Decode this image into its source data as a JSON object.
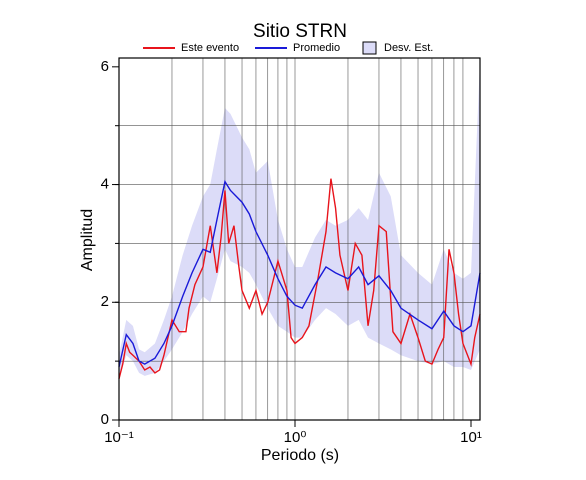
{
  "chart_data": {
    "type": "line",
    "title": "Sitio STRN",
    "x_label": "Periodo (s)",
    "y_label": "Amplitud",
    "xscale": "log",
    "xlim": [
      0.1,
      11.25
    ],
    "ylim": [
      0,
      6.15
    ],
    "xticks": [
      {
        "value": 0.1,
        "label": "10⁻¹"
      },
      {
        "value": 1,
        "label": "10⁰"
      },
      {
        "value": 10,
        "label": "10¹"
      }
    ],
    "yticks": [
      0,
      2,
      4,
      6
    ],
    "xgrid": [
      0.2,
      0.3,
      0.4,
      0.5,
      0.6,
      0.7,
      0.8,
      0.9,
      1,
      2,
      3,
      4,
      5,
      6,
      7,
      8,
      9
    ],
    "ygrid": [
      1,
      2,
      3,
      4,
      5
    ],
    "legend": "top",
    "band": {
      "name": "Desv. Est.",
      "color": "#dcdcf8",
      "x": [
        0.1,
        0.11,
        0.12,
        0.13,
        0.14,
        0.16,
        0.18,
        0.2,
        0.23,
        0.26,
        0.3,
        0.33,
        0.36,
        0.4,
        0.43,
        0.5,
        0.55,
        0.6,
        0.7,
        0.8,
        0.9,
        1.0,
        1.1,
        1.3,
        1.5,
        1.7,
        2.0,
        2.3,
        2.6,
        3.0,
        3.5,
        4.0,
        5.0,
        6.0,
        7.0,
        8.0,
        9.0,
        10.0,
        11.25
      ],
      "lower": [
        0.7,
        1.1,
        1.0,
        0.8,
        0.75,
        0.8,
        1.0,
        1.2,
        1.5,
        1.8,
        2.1,
        2.0,
        2.4,
        2.9,
        2.7,
        2.6,
        2.5,
        2.3,
        1.9,
        1.6,
        1.5,
        1.4,
        1.4,
        1.7,
        1.9,
        1.8,
        1.6,
        1.7,
        1.4,
        1.3,
        1.2,
        1.1,
        1.0,
        0.95,
        1.0,
        0.9,
        0.9,
        0.85,
        1.2
      ],
      "upper": [
        1.1,
        1.7,
        1.6,
        1.2,
        1.15,
        1.3,
        1.7,
        2.1,
        2.8,
        3.3,
        3.8,
        4.0,
        4.6,
        5.3,
        5.2,
        4.8,
        4.6,
        4.2,
        4.4,
        3.4,
        2.9,
        2.6,
        2.6,
        3.1,
        3.4,
        3.3,
        3.4,
        3.6,
        3.4,
        4.2,
        3.8,
        2.8,
        2.5,
        2.3,
        2.9,
        2.5,
        2.4,
        2.5,
        6.1
      ]
    },
    "series": [
      {
        "name": "Este evento",
        "color": "#e8141c",
        "x": [
          0.1,
          0.105,
          0.11,
          0.115,
          0.12,
          0.13,
          0.14,
          0.15,
          0.16,
          0.17,
          0.18,
          0.2,
          0.22,
          0.24,
          0.25,
          0.27,
          0.3,
          0.33,
          0.36,
          0.38,
          0.4,
          0.42,
          0.45,
          0.48,
          0.5,
          0.55,
          0.6,
          0.65,
          0.7,
          0.8,
          0.9,
          0.95,
          1.0,
          1.1,
          1.2,
          1.35,
          1.5,
          1.6,
          1.7,
          1.8,
          2.0,
          2.2,
          2.4,
          2.6,
          2.8,
          3.0,
          3.3,
          3.6,
          4.0,
          4.5,
          5.0,
          5.5,
          6.0,
          6.5,
          7.0,
          7.5,
          8.0,
          8.5,
          9.0,
          10.0,
          10.5,
          11.25
        ],
        "values": [
          0.7,
          0.95,
          1.3,
          1.15,
          1.1,
          1.0,
          0.85,
          0.9,
          0.8,
          0.85,
          1.1,
          1.7,
          1.5,
          1.5,
          1.9,
          2.3,
          2.6,
          3.3,
          2.5,
          3.1,
          3.9,
          3.0,
          3.3,
          2.6,
          2.2,
          1.9,
          2.2,
          1.8,
          2.0,
          2.7,
          2.2,
          1.4,
          1.3,
          1.4,
          1.6,
          2.4,
          3.2,
          4.1,
          3.6,
          2.8,
          2.2,
          3.0,
          2.8,
          1.6,
          2.2,
          3.3,
          3.2,
          1.5,
          1.3,
          1.8,
          1.4,
          1.0,
          0.95,
          1.2,
          1.4,
          2.9,
          2.5,
          1.8,
          1.3,
          0.95,
          1.4,
          1.8
        ]
      },
      {
        "name": "Promedio",
        "color": "#1a1ad8",
        "x": [
          0.1,
          0.11,
          0.12,
          0.13,
          0.14,
          0.16,
          0.18,
          0.2,
          0.23,
          0.26,
          0.3,
          0.33,
          0.36,
          0.4,
          0.43,
          0.5,
          0.55,
          0.6,
          0.7,
          0.8,
          0.9,
          1.0,
          1.1,
          1.3,
          1.5,
          1.7,
          2.0,
          2.3,
          2.6,
          3.0,
          3.5,
          4.0,
          5.0,
          6.0,
          7.0,
          8.0,
          9.0,
          10.0,
          11.25
        ],
        "values": [
          0.9,
          1.45,
          1.3,
          1.0,
          0.95,
          1.05,
          1.3,
          1.6,
          2.1,
          2.5,
          2.9,
          2.85,
          3.4,
          4.05,
          3.9,
          3.7,
          3.5,
          3.2,
          2.8,
          2.4,
          2.1,
          1.95,
          1.9,
          2.3,
          2.6,
          2.5,
          2.4,
          2.6,
          2.3,
          2.45,
          2.2,
          1.9,
          1.7,
          1.55,
          1.85,
          1.6,
          1.5,
          1.6,
          2.5
        ]
      }
    ]
  }
}
